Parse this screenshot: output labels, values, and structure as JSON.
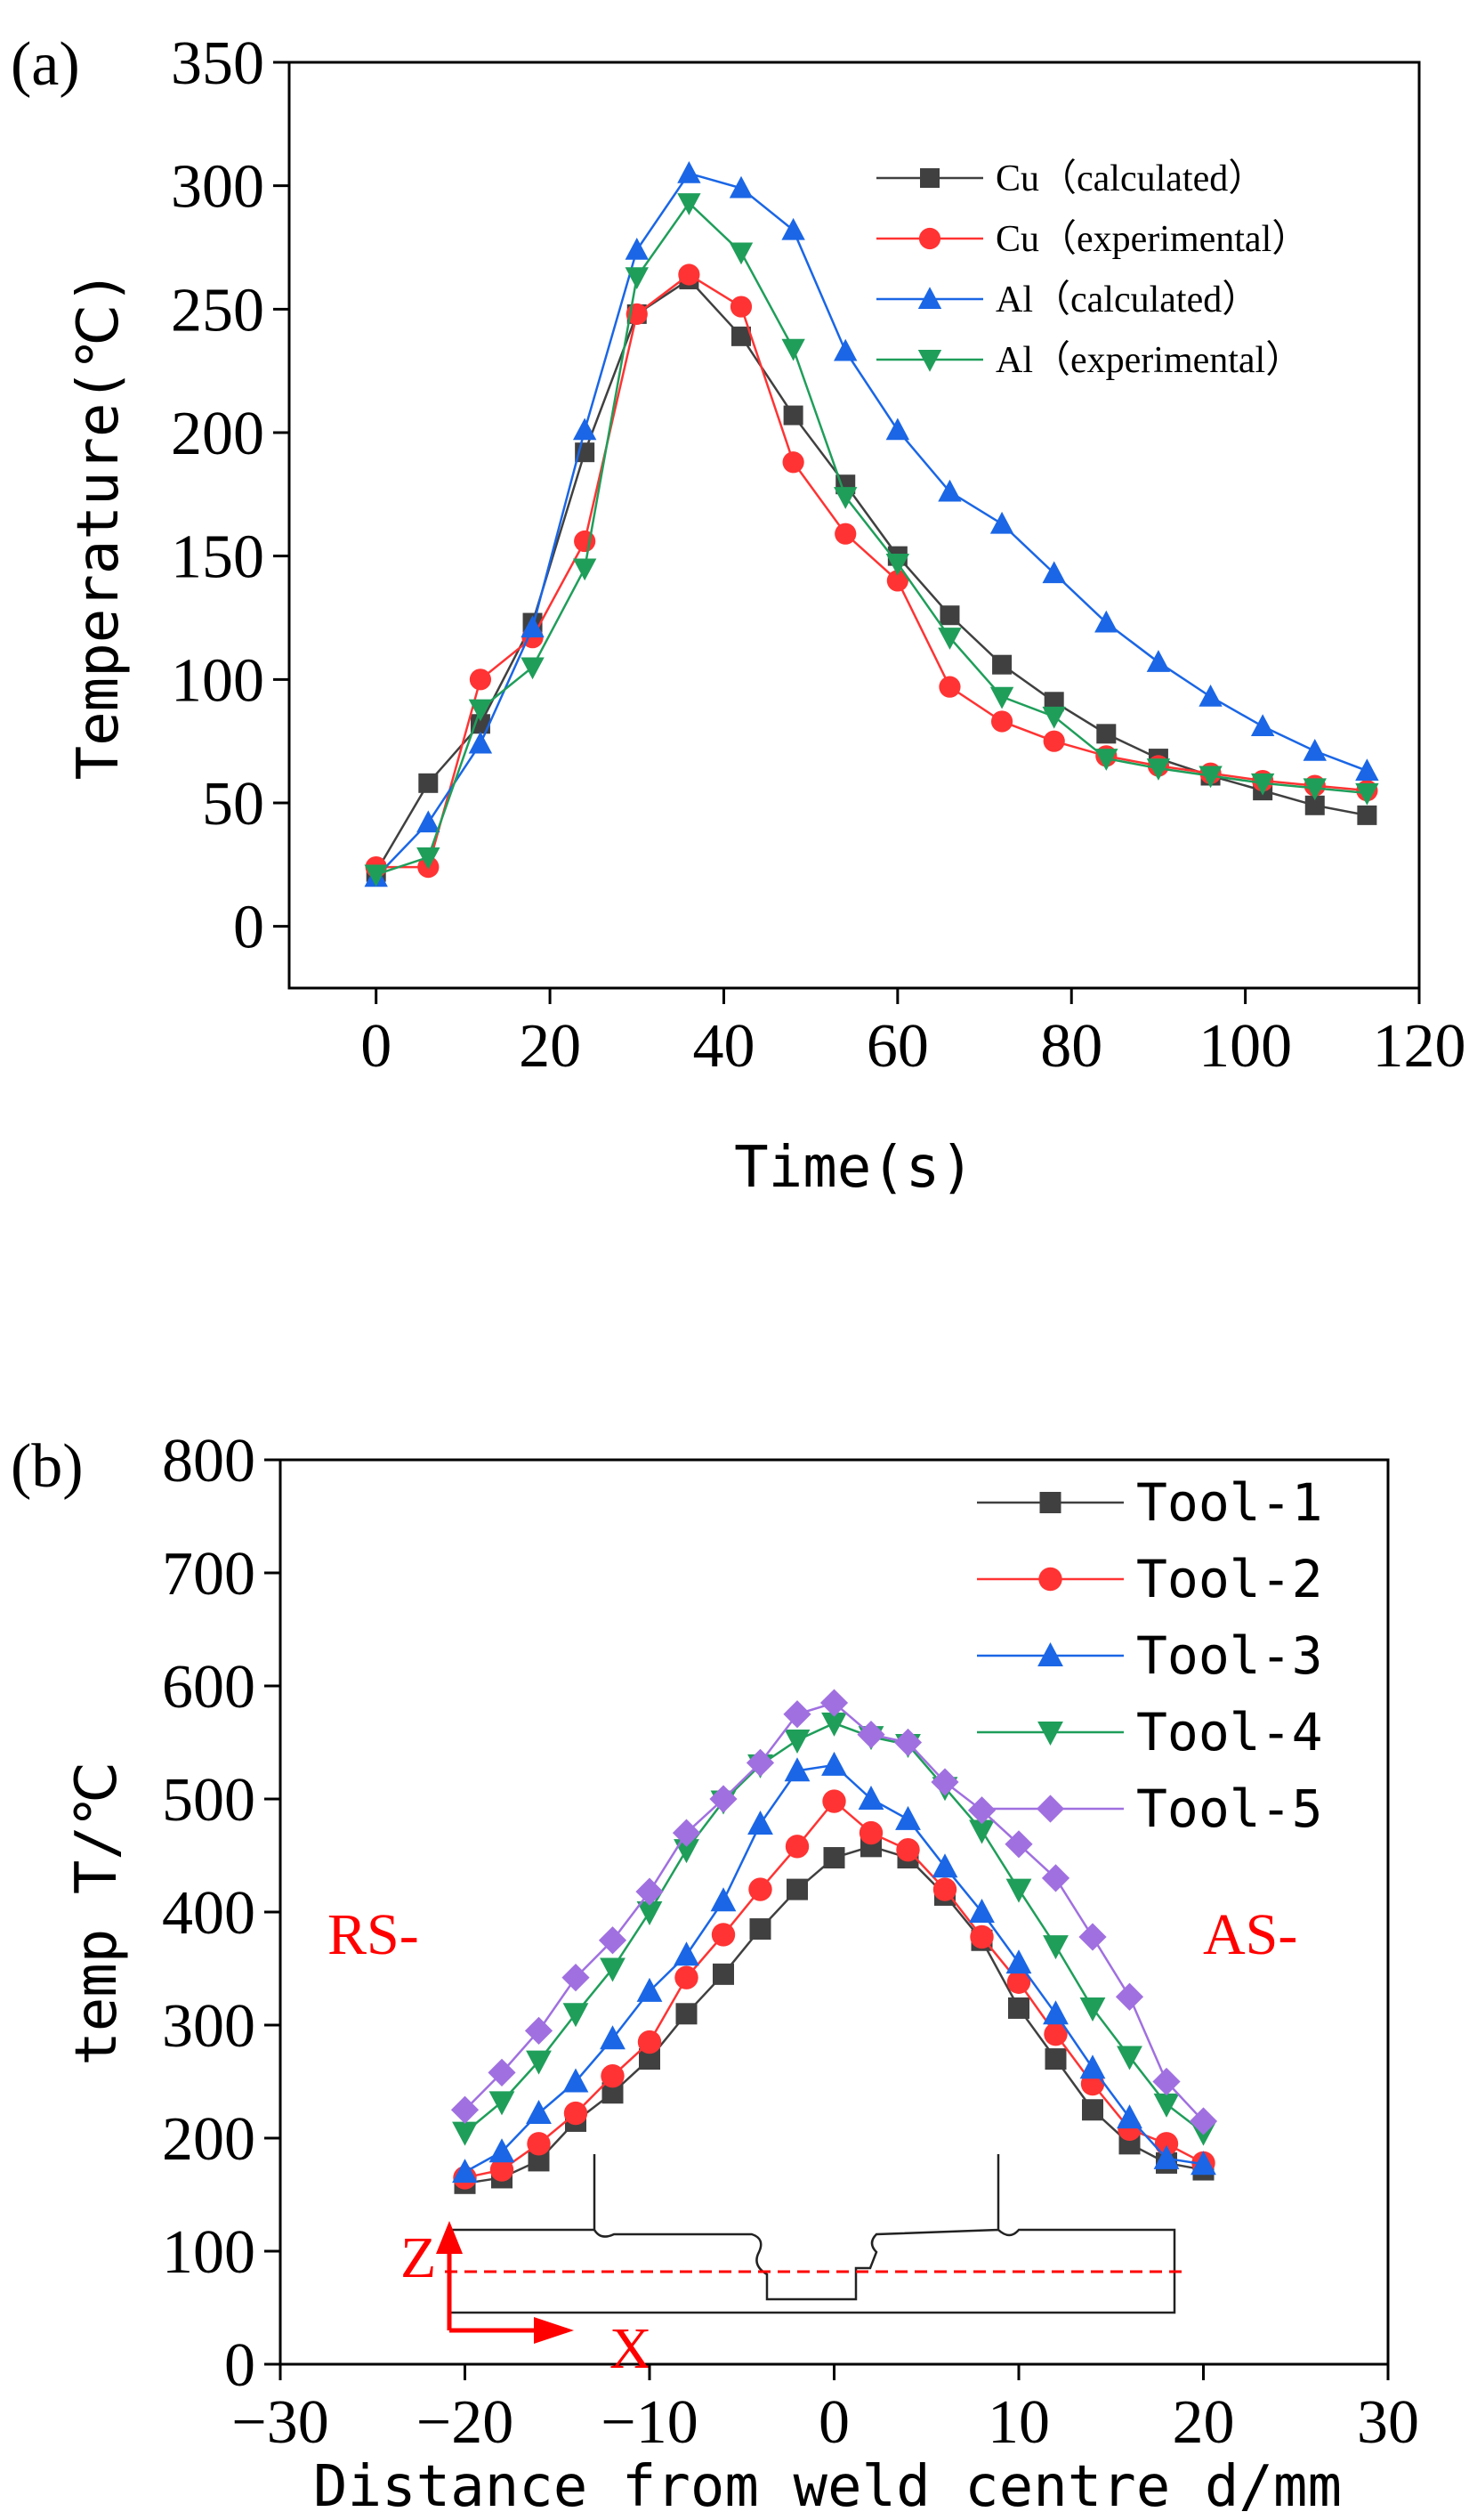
{
  "chart_data": [
    {
      "panel_label": "(a)",
      "type": "line",
      "title": "",
      "xlabel": "Time(s)",
      "ylabel": "Temperature(℃)",
      "xlim": [
        -10,
        120
      ],
      "ylim": [
        -25,
        350
      ],
      "x_ticks": [
        0,
        20,
        40,
        60,
        80,
        100,
        120
      ],
      "y_ticks": [
        0,
        50,
        100,
        150,
        200,
        250,
        300,
        350
      ],
      "grid": false,
      "legend_position": "top-right",
      "x": [
        0,
        6,
        12,
        18,
        24,
        30,
        36,
        42,
        48,
        54,
        60,
        66,
        72,
        78,
        84,
        90,
        96,
        102,
        108,
        114
      ],
      "series": [
        {
          "name": "Cu（calculated）",
          "color": "#404040",
          "marker": "square",
          "values": [
            22,
            58,
            82,
            123,
            192,
            248,
            262,
            239,
            207,
            179,
            150,
            126,
            106,
            91,
            78,
            68,
            61,
            55,
            49,
            45
          ]
        },
        {
          "name": "Cu（experimental）",
          "color": "#ff3333",
          "marker": "circle",
          "values": [
            24,
            24,
            100,
            117,
            156,
            248,
            264,
            251,
            188,
            159,
            140,
            97,
            83,
            75,
            69,
            65,
            62,
            59,
            57,
            55
          ]
        },
        {
          "name": "Al（calculated）",
          "color": "#1a66e6",
          "marker": "triangle-up",
          "values": [
            20,
            42,
            74,
            121,
            201,
            274,
            305,
            299,
            282,
            233,
            201,
            176,
            163,
            143,
            123,
            107,
            93,
            81,
            71,
            63
          ]
        },
        {
          "name": "Al（experimental）",
          "color": "#1f9e5a",
          "marker": "triangle-down",
          "values": [
            21,
            28,
            88,
            105,
            145,
            263,
            293,
            273,
            234,
            174,
            147,
            117,
            93,
            85,
            68,
            64,
            61,
            58,
            56,
            54
          ]
        }
      ]
    },
    {
      "panel_label": "(b)",
      "type": "line",
      "title": "",
      "xlabel": "Distance from weld centre d/mm",
      "ylabel": "temp T/℃",
      "xlim": [
        -30,
        30
      ],
      "ylim": [
        0,
        800
      ],
      "x_ticks": [
        -30,
        -20,
        -10,
        0,
        10,
        20,
        30
      ],
      "y_ticks": [
        0,
        100,
        200,
        300,
        400,
        500,
        600,
        700,
        800
      ],
      "grid": false,
      "legend_position": "top-right",
      "annotations": [
        "RS-",
        "AS-",
        "Z",
        "X"
      ],
      "x": [
        -20,
        -18,
        -16,
        -14,
        -12,
        -10,
        -8,
        -6,
        -4,
        -2,
        0,
        2,
        4,
        6,
        8,
        10,
        12,
        14,
        16,
        18,
        20
      ],
      "series": [
        {
          "name": "Tool-1",
          "color": "#404040",
          "marker": "square",
          "values": [
            160,
            165,
            180,
            215,
            240,
            270,
            310,
            345,
            385,
            420,
            448,
            458,
            448,
            415,
            375,
            315,
            270,
            225,
            195,
            178,
            172
          ]
        },
        {
          "name": "Tool-2",
          "color": "#ff3333",
          "marker": "circle",
          "values": [
            165,
            172,
            195,
            222,
            255,
            285,
            342,
            380,
            420,
            458,
            498,
            470,
            455,
            420,
            378,
            338,
            292,
            248,
            208,
            195,
            178
          ]
        },
        {
          "name": "Tool-3",
          "color": "#1a66e6",
          "marker": "triangle-up",
          "values": [
            170,
            188,
            222,
            250,
            288,
            330,
            362,
            410,
            478,
            525,
            530,
            500,
            482,
            440,
            400,
            355,
            310,
            262,
            218,
            182,
            177
          ]
        },
        {
          "name": "Tool-4",
          "color": "#1f9e5a",
          "marker": "triangle-down",
          "values": [
            205,
            232,
            268,
            310,
            350,
            400,
            455,
            498,
            530,
            552,
            567,
            555,
            548,
            510,
            472,
            420,
            370,
            315,
            272,
            230,
            205
          ]
        },
        {
          "name": "Tool-5",
          "color": "#a070e0",
          "marker": "diamond",
          "values": [
            225,
            258,
            295,
            342,
            375,
            418,
            470,
            500,
            532,
            575,
            585,
            557,
            550,
            515,
            490,
            460,
            430,
            378,
            325,
            250,
            215
          ]
        }
      ]
    }
  ]
}
